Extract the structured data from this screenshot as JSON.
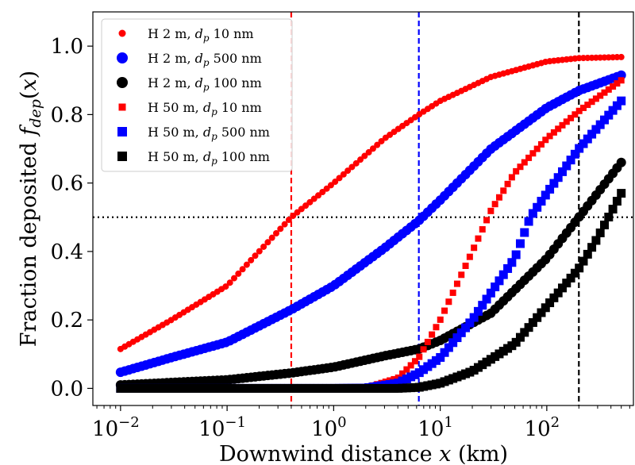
{
  "chart_data": {
    "type": "scatter",
    "xscale": "log",
    "xlim": [
      0.0055,
      650
    ],
    "ylim": [
      -0.05,
      1.1
    ],
    "xlabel": "Downwind distance x (km)",
    "ylabel": "Fraction deposited f_dep(x)",
    "x_ticks": [
      {
        "value": 0.01,
        "base": "10",
        "exp": "−2"
      },
      {
        "value": 0.1,
        "base": "10",
        "exp": "−1"
      },
      {
        "value": 1,
        "base": "10",
        "exp": "0"
      },
      {
        "value": 10,
        "base": "10",
        "exp": "1"
      },
      {
        "value": 100,
        "base": "10",
        "exp": "2"
      }
    ],
    "y_ticks": [
      "0.0",
      "0.2",
      "0.4",
      "0.6",
      "0.8",
      "1.0"
    ],
    "grid": false,
    "legend_position": "upper-left",
    "n_points": 120,
    "x_range": [
      0.01,
      500
    ],
    "series": [
      {
        "label_prefix": "H 2 m, ",
        "label_var": "d",
        "label_sub": "p",
        "label_suffix": " 10 nm",
        "marker": "circle",
        "size": "small",
        "color": "#ff0000",
        "key_points": [
          [
            0.01,
            0.115
          ],
          [
            0.03,
            0.2
          ],
          [
            0.1,
            0.3
          ],
          [
            0.4,
            0.5
          ],
          [
            1,
            0.6
          ],
          [
            3,
            0.73
          ],
          [
            6.3,
            0.8
          ],
          [
            10,
            0.84
          ],
          [
            30,
            0.91
          ],
          [
            100,
            0.955
          ],
          [
            200,
            0.965
          ],
          [
            500,
            0.968
          ]
        ]
      },
      {
        "label_prefix": "H 2 m, ",
        "label_var": "d",
        "label_sub": "p",
        "label_suffix": " 500 nm",
        "marker": "circle",
        "size": "large",
        "color": "#0000ff",
        "key_points": [
          [
            0.01,
            0.047
          ],
          [
            0.03,
            0.09
          ],
          [
            0.1,
            0.135
          ],
          [
            0.4,
            0.23
          ],
          [
            1,
            0.3
          ],
          [
            3,
            0.41
          ],
          [
            6.3,
            0.49
          ],
          [
            10,
            0.55
          ],
          [
            30,
            0.7
          ],
          [
            100,
            0.82
          ],
          [
            200,
            0.87
          ],
          [
            500,
            0.915
          ]
        ]
      },
      {
        "label_prefix": "H 2 m, ",
        "label_var": "d",
        "label_sub": "p",
        "label_suffix": " 100 nm",
        "marker": "circle",
        "size": "large",
        "color": "#000000",
        "key_points": [
          [
            0.01,
            0.01
          ],
          [
            0.1,
            0.025
          ],
          [
            0.4,
            0.045
          ],
          [
            1,
            0.062
          ],
          [
            3,
            0.095
          ],
          [
            6.3,
            0.115
          ],
          [
            10,
            0.14
          ],
          [
            30,
            0.22
          ],
          [
            100,
            0.38
          ],
          [
            200,
            0.5
          ],
          [
            500,
            0.66
          ]
        ]
      },
      {
        "label_prefix": "H 50 m, ",
        "label_var": "d",
        "label_sub": "p",
        "label_suffix": " 10 nm",
        "marker": "square",
        "size": "small",
        "color": "#ff0000",
        "key_points": [
          [
            0.01,
            0.0
          ],
          [
            1,
            0.0
          ],
          [
            2,
            0.002
          ],
          [
            4,
            0.03
          ],
          [
            6.3,
            0.09
          ],
          [
            10,
            0.2
          ],
          [
            20,
            0.4
          ],
          [
            30,
            0.52
          ],
          [
            50,
            0.63
          ],
          [
            100,
            0.73
          ],
          [
            200,
            0.81
          ],
          [
            500,
            0.9
          ]
        ]
      },
      {
        "label_prefix": "H 50 m, ",
        "label_var": "d",
        "label_sub": "p",
        "label_suffix": " 500 nm",
        "marker": "square",
        "size": "large",
        "color": "#0000ff",
        "key_points": [
          [
            0.01,
            0.0
          ],
          [
            1,
            0.0
          ],
          [
            2,
            0.001
          ],
          [
            4,
            0.015
          ],
          [
            6.3,
            0.045
          ],
          [
            10,
            0.09
          ],
          [
            20,
            0.2
          ],
          [
            50,
            0.38
          ],
          [
            70,
            0.5
          ],
          [
            100,
            0.57
          ],
          [
            200,
            0.7
          ],
          [
            500,
            0.84
          ]
        ]
      },
      {
        "label_prefix": "H 50 m, ",
        "label_var": "d",
        "label_sub": "p",
        "label_suffix": " 100 nm",
        "marker": "square",
        "size": "large",
        "color": "#000000",
        "key_points": [
          [
            0.01,
            0.0
          ],
          [
            4,
            0.0
          ],
          [
            6.3,
            0.003
          ],
          [
            10,
            0.015
          ],
          [
            20,
            0.05
          ],
          [
            50,
            0.13
          ],
          [
            100,
            0.24
          ],
          [
            200,
            0.35
          ],
          [
            300,
            0.44
          ],
          [
            500,
            0.57
          ]
        ]
      }
    ],
    "reference_lines": [
      {
        "orientation": "vertical",
        "x": 0.4,
        "color": "#ff0000",
        "style": "dashed"
      },
      {
        "orientation": "vertical",
        "x": 6.3,
        "color": "#0000ff",
        "style": "dashed"
      },
      {
        "orientation": "vertical",
        "x": 200,
        "color": "#000000",
        "style": "dashed"
      },
      {
        "orientation": "horizontal",
        "y": 0.5,
        "color": "#000000",
        "style": "dotted"
      }
    ]
  }
}
